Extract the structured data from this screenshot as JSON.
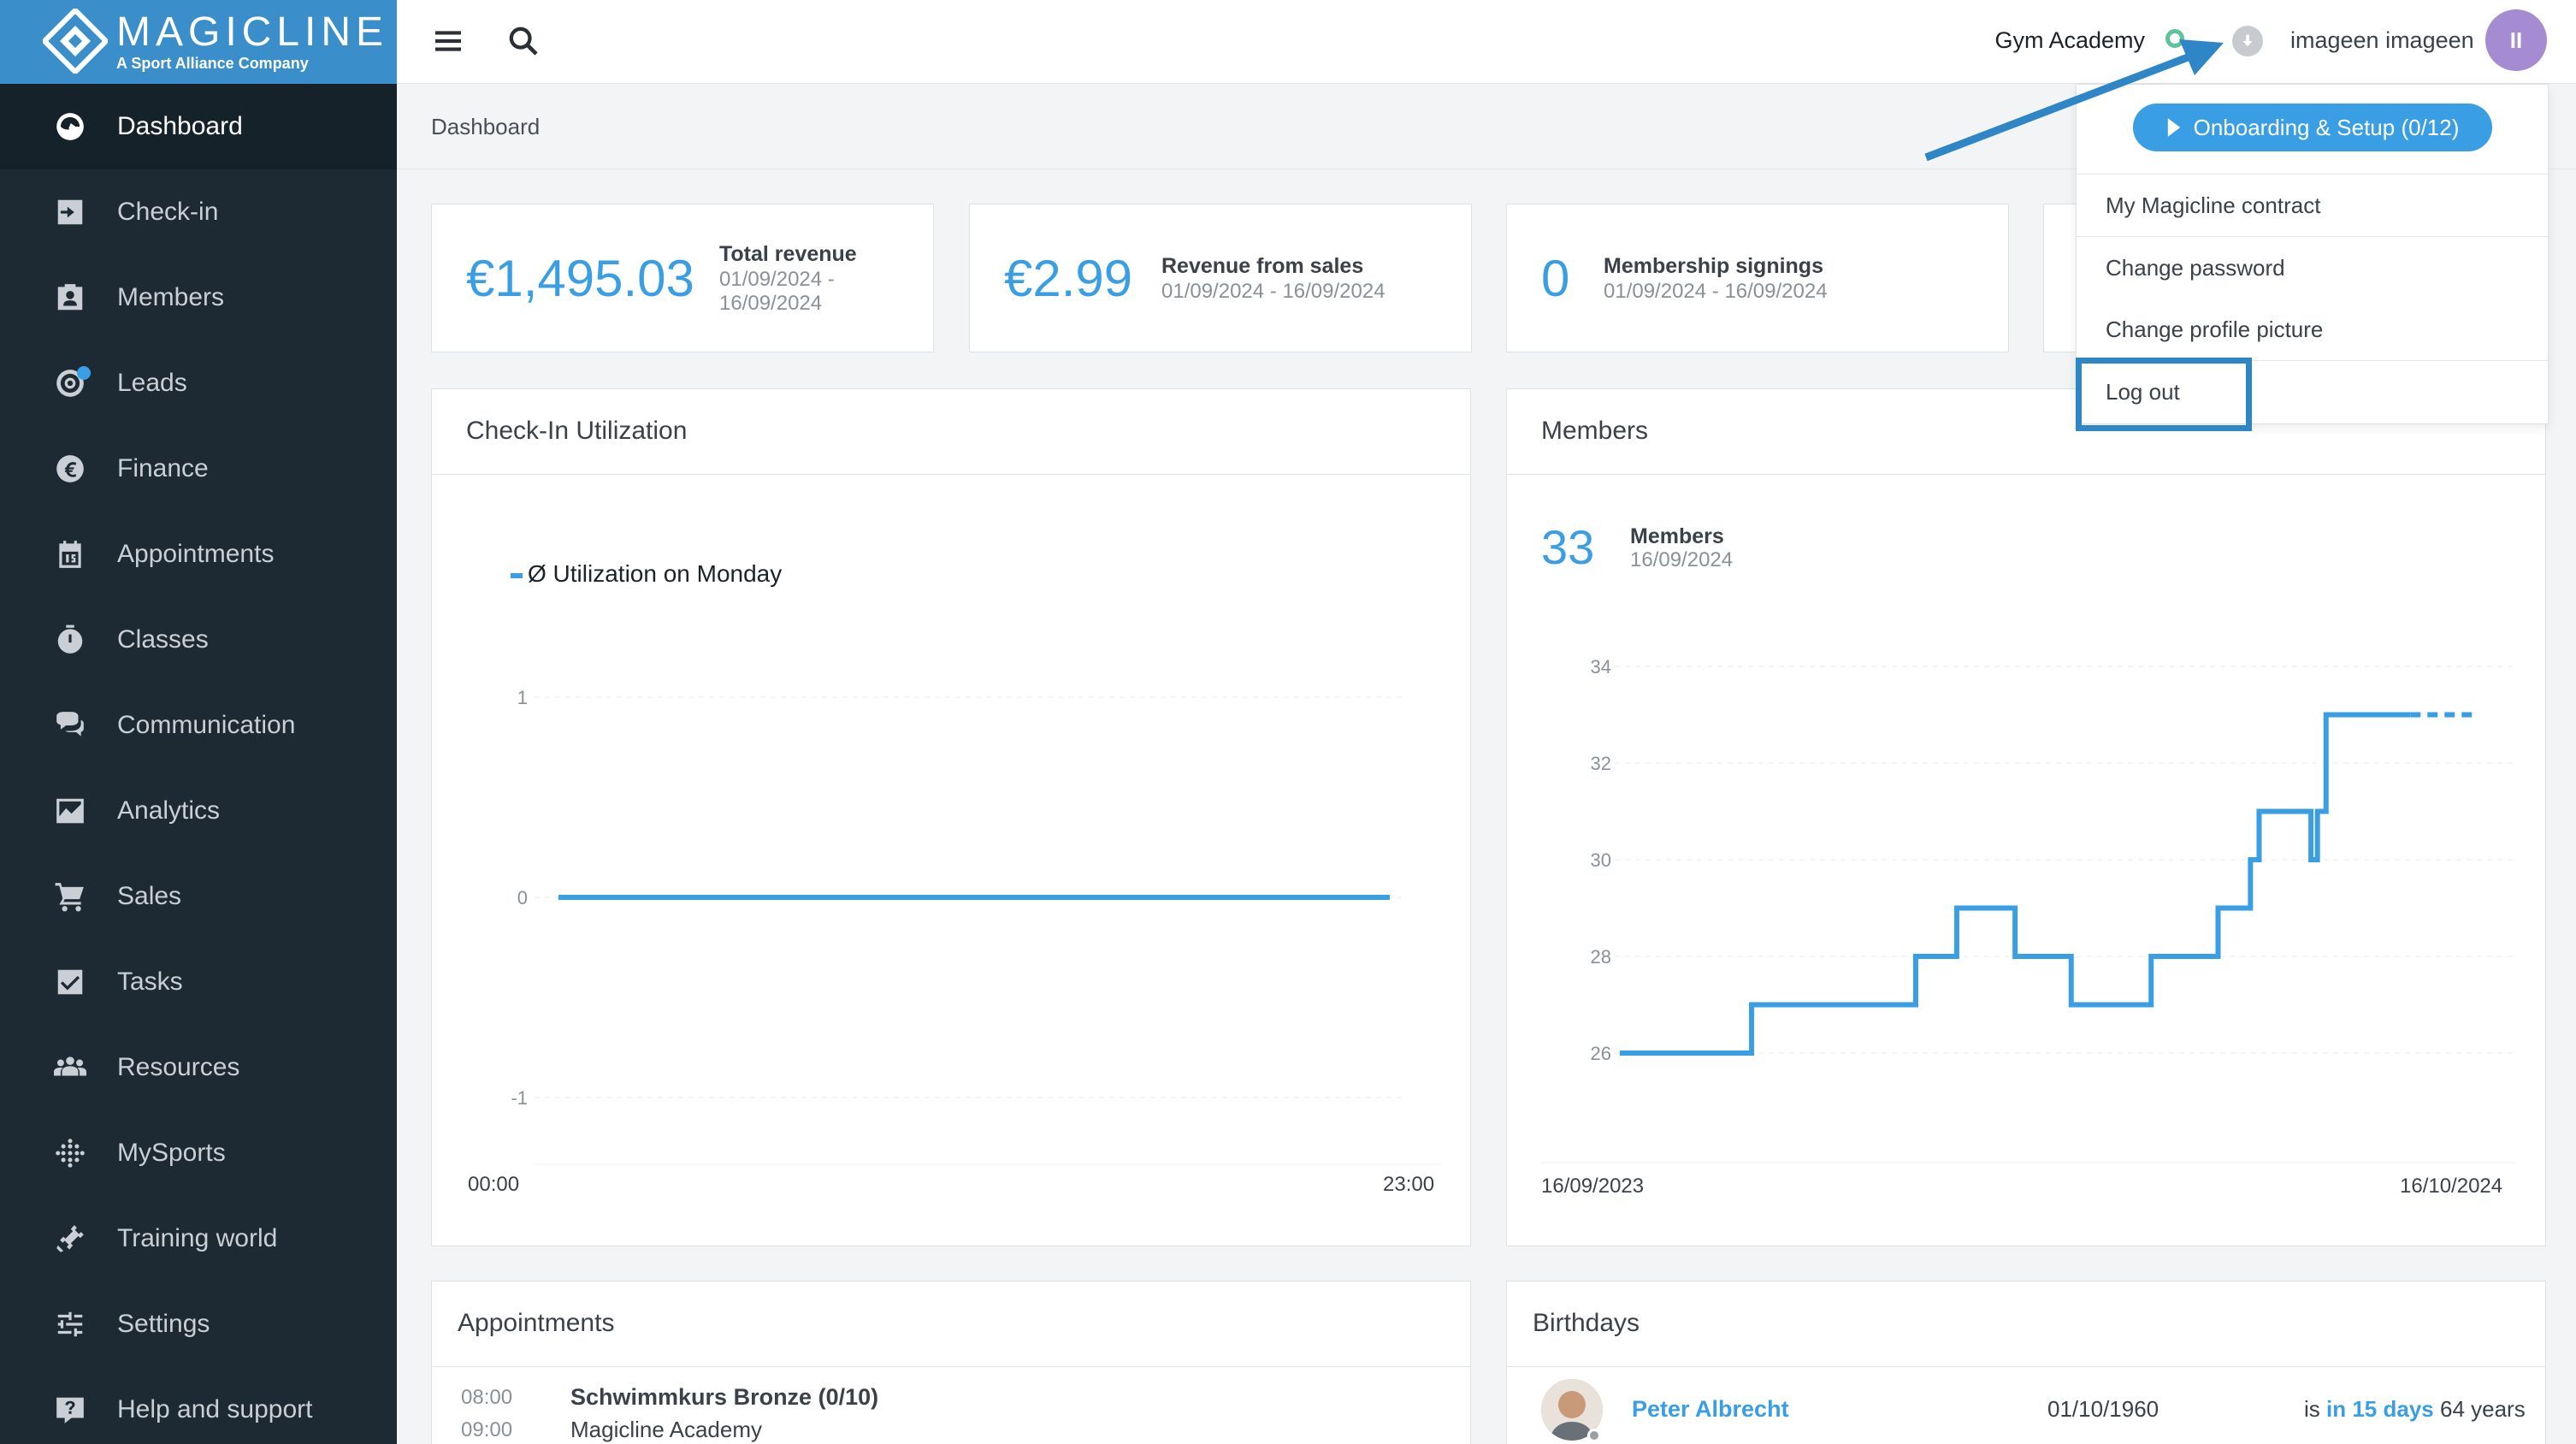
{
  "brand": {
    "name": "MAGICLINE",
    "tagline": "A Sport Alliance Company"
  },
  "sidebar": {
    "items": [
      {
        "label": "Dashboard",
        "icon": "dashboard-icon",
        "active": true
      },
      {
        "label": "Check-in",
        "icon": "check-in-icon"
      },
      {
        "label": "Members",
        "icon": "members-icon"
      },
      {
        "label": "Leads",
        "icon": "leads-icon",
        "badge": true
      },
      {
        "label": "Finance",
        "icon": "euro-icon"
      },
      {
        "label": "Appointments",
        "icon": "calendar-icon"
      },
      {
        "label": "Classes",
        "icon": "stopwatch-icon"
      },
      {
        "label": "Communication",
        "icon": "chat-icon"
      },
      {
        "label": "Analytics",
        "icon": "chart-icon"
      },
      {
        "label": "Sales",
        "icon": "cart-icon"
      },
      {
        "label": "Tasks",
        "icon": "checkbox-icon"
      },
      {
        "label": "Resources",
        "icon": "group-icon"
      },
      {
        "label": "MySports",
        "icon": "dots-grid-icon"
      },
      {
        "label": "Training world",
        "icon": "dumbbell-icon"
      },
      {
        "label": "Settings",
        "icon": "sliders-icon"
      },
      {
        "label": "Help and support",
        "icon": "help-icon"
      }
    ]
  },
  "header": {
    "studio": "Gym Academy",
    "user": "imageen imageen",
    "avatar_initials": "II"
  },
  "breadcrumb": "Dashboard",
  "kpis": [
    {
      "value": "€1,495.03",
      "title": "Total revenue",
      "sub1": "01/09/2024 -",
      "sub2": "16/09/2024"
    },
    {
      "value": "€2.99",
      "title": "Revenue from sales",
      "sub1": "01/09/2024 - 16/09/2024"
    },
    {
      "value": "0",
      "title": "Membership signings",
      "sub1": "01/09/2024 - 16/09/2024"
    }
  ],
  "checkin": {
    "title": "Check-In Utilization",
    "legend": "Ø Utilization on Monday",
    "x_start": "00:00",
    "x_end": "23:00"
  },
  "members_panel": {
    "title": "Members",
    "value": "33",
    "label": "Members",
    "date": "16/09/2024",
    "x_start": "16/09/2023",
    "x_end": "16/10/2024"
  },
  "appointments": {
    "title": "Appointments",
    "time_start": "08:00",
    "time_end": "09:00",
    "name": "Schwimmkurs Bronze (0/10)",
    "location": "Magicline Academy"
  },
  "birthdays": {
    "title": "Birthdays",
    "name": "Peter Albrecht",
    "date": "01/10/1960",
    "prefix": "is",
    "in_days": "in 15 days",
    "age": "64 years"
  },
  "dropdown": {
    "onboarding": "Onboarding & Setup (0/12)",
    "items": [
      "My Magicline contract",
      "Change password",
      "Change profile picture",
      "Log out"
    ]
  },
  "colors": {
    "accent": "#3a9ee4",
    "sidebar": "#1d2a33",
    "brand": "#3a8fca",
    "highlight": "#2f86c7"
  },
  "chart_data": [
    {
      "type": "line",
      "title": "Check-In Utilization",
      "series": [
        {
          "name": "Ø Utilization on Monday",
          "x": [
            "00:00",
            "23:00"
          ],
          "values": [
            0,
            0
          ]
        }
      ],
      "ylim": [
        -1,
        1
      ],
      "yticks": [
        1,
        0,
        -1
      ]
    },
    {
      "type": "line",
      "title": "Members",
      "x": [
        "16/09/2023",
        "16/10/2024"
      ],
      "series": [
        {
          "step": true,
          "points": [
            {
              "x": "16/09/2023",
              "y": 26
            },
            {
              "x": "16/11/2023",
              "y": 27
            },
            {
              "x": "31/01/2024",
              "y": 28
            },
            {
              "x": "19/02/2024",
              "y": 29
            },
            {
              "x": "17/03/2024",
              "y": 28
            },
            {
              "x": "12/04/2024",
              "y": 27
            },
            {
              "x": "19/05/2024",
              "y": 28
            },
            {
              "x": "19/06/2024",
              "y": 29
            },
            {
              "x": "04/07/2024",
              "y": 30
            },
            {
              "x": "08/07/2024",
              "y": 31
            },
            {
              "x": "01/08/2024",
              "y": 30
            },
            {
              "x": "04/08/2024",
              "y": 31
            },
            {
              "x": "08/08/2024",
              "y": 33
            },
            {
              "x": "16/09/2024",
              "y": 33
            },
            {
              "x": "16/10/2024",
              "y": 33
            }
          ]
        }
      ],
      "ylim": [
        26,
        34
      ],
      "yticks": [
        34,
        32,
        30,
        28,
        26
      ]
    }
  ]
}
